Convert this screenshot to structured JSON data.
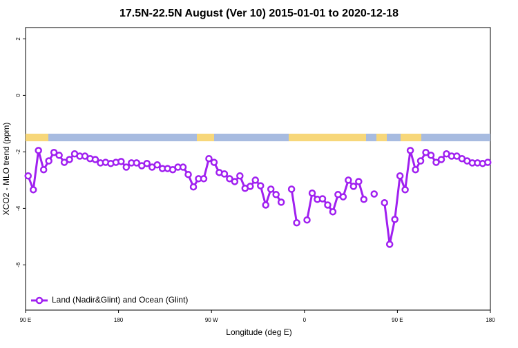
{
  "chart_data": {
    "type": "line",
    "title": "17.5N-22.5N August (Ver 10)   2015-01-01 to 2020-12-18",
    "x_label": "Longitude (deg E)",
    "y_label": "XCO2 - MLO trend (ppm)",
    "x": [
      92.5,
      97.5,
      102.5,
      107.5,
      112.5,
      117.5,
      122.5,
      127.5,
      132.5,
      137.5,
      142.5,
      147.5,
      152.5,
      157.5,
      162.5,
      167.5,
      172.5,
      177.5,
      182.5,
      187.5,
      192.5,
      197.5,
      202.5,
      207.5,
      212.5,
      217.5,
      222.5,
      227.5,
      232.5,
      237.5,
      242.5,
      247.5,
      252.5,
      257.5,
      262.5,
      267.5,
      272.5,
      277.5,
      282.5,
      287.5,
      292.5,
      297.5,
      302.5,
      307.5,
      312.5,
      317.5,
      322.5,
      327.5,
      332.5,
      337.5,
      342.5,
      347.5,
      352.5,
      357.5,
      362.5,
      367.5,
      372.5,
      377.5,
      382.5,
      387.5,
      392.5,
      397.5,
      402.5,
      407.5,
      412.5,
      417.5,
      422.5,
      427.5,
      432.5,
      437.5,
      442.5,
      447.5,
      452.5,
      457.5,
      462.5,
      467.5,
      472.5,
      477.5,
      482.5,
      487.5,
      492.5,
      497.5,
      502.5,
      507.5,
      512.5,
      517.5,
      522.5,
      527.5,
      532.5,
      537.5
    ],
    "series": [
      {
        "name": "Land (Nadir&Glint) and Ocean (Glint)",
        "color": "#a020f0",
        "values": [
          -2.85,
          -3.34,
          -1.95,
          -2.63,
          -2.32,
          -2.02,
          -2.12,
          -2.37,
          -2.27,
          -2.07,
          -2.15,
          -2.15,
          -2.24,
          -2.27,
          -2.39,
          -2.37,
          -2.41,
          -2.37,
          -2.34,
          -2.54,
          -2.39,
          -2.39,
          -2.49,
          -2.41,
          -2.54,
          -2.46,
          -2.59,
          -2.59,
          -2.63,
          -2.54,
          -2.54,
          -2.8,
          -3.24,
          -2.95,
          -2.95,
          -2.24,
          -2.37,
          -2.73,
          -2.78,
          -2.95,
          -3.05,
          -2.85,
          -3.29,
          -3.22,
          -3.0,
          -3.2,
          -3.88,
          -3.32,
          -3.51,
          -3.78,
          null,
          -3.32,
          -4.51,
          null,
          -4.41,
          -3.46,
          -3.68,
          -3.66,
          -3.88,
          -4.12,
          -3.51,
          -3.59,
          -3.0,
          -3.22,
          -3.05,
          -3.68,
          null,
          -3.49,
          null,
          -3.8,
          -5.27,
          -4.39,
          -2.85,
          -3.34,
          -1.95,
          -2.63,
          -2.32,
          -2.02,
          -2.12,
          -2.37,
          -2.27,
          -2.07,
          -2.15,
          -2.15,
          -2.24,
          -2.32,
          -2.39,
          -2.39,
          -2.41,
          -2.37
        ]
      }
    ],
    "xlim": [
      90,
      540
    ],
    "xticks": [
      {
        "value": 90,
        "label": "90 E"
      },
      180,
      {
        "value": 270,
        "label": "90 W"
      },
      {
        "value": 360,
        "label": "0"
      },
      {
        "value": 450,
        "label": "90 E"
      },
      {
        "value": 540,
        "label": "180"
      }
    ],
    "ylim": [
      -7.6,
      2.4
    ],
    "yticks": [
      2,
      0,
      -2,
      -4,
      -6
    ],
    "legend": "bottom-left"
  }
}
